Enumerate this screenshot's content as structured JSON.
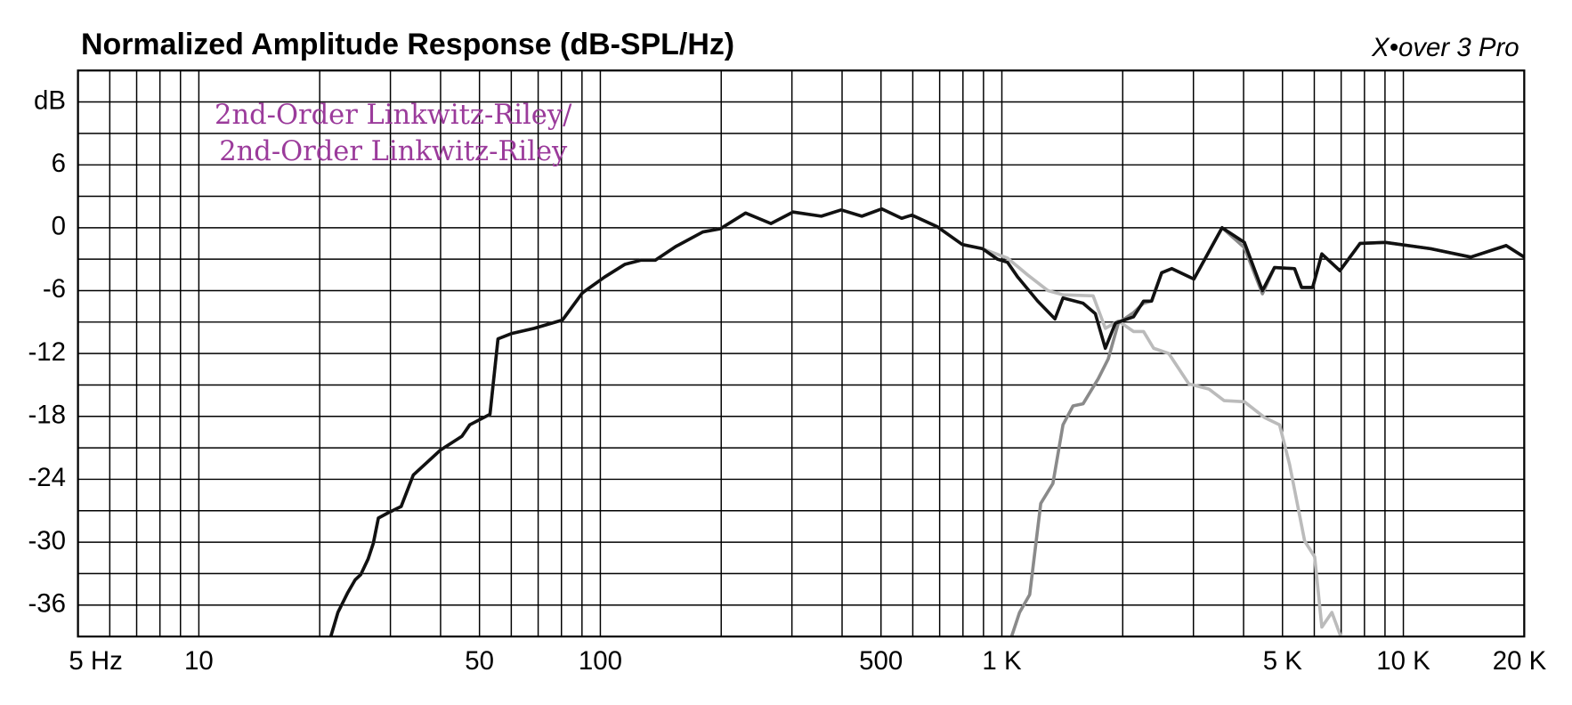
{
  "chart_data": {
    "type": "line",
    "title": "Normalized Amplitude Response (dB-SPL/Hz)",
    "brand": "X•over 3 Pro",
    "annotation": [
      "2nd-Order Linkwitz-Riley/",
      "2nd-Order Linkwitz-Riley"
    ],
    "xscale": "log",
    "xlim": [
      5,
      20000
    ],
    "ylim": [
      -39,
      15
    ],
    "xticks": [
      {
        "value": 5,
        "label": "5 Hz"
      },
      10,
      50,
      100,
      500,
      {
        "value": 1000,
        "label": "1 K"
      },
      {
        "value": 5000,
        "label": "5 K"
      },
      {
        "value": 10000,
        "label": "10 K"
      },
      {
        "value": 20000,
        "label": "20 K"
      }
    ],
    "minor_xticks": [
      6,
      7,
      8,
      9,
      20,
      30,
      40,
      60,
      70,
      80,
      90,
      200,
      300,
      400,
      600,
      700,
      800,
      900,
      2000,
      3000,
      4000,
      6000,
      7000,
      8000,
      9000
    ],
    "yticks": [
      {
        "value": 12,
        "label": "dB"
      },
      6,
      0,
      -6,
      -12,
      -18,
      -24,
      -30,
      -36
    ],
    "minor_yticks": [
      15,
      9,
      3,
      -3,
      -9,
      -15,
      -21,
      -27,
      -33,
      -39
    ],
    "grid": true,
    "series": [
      {
        "color": "#bbbbbb",
        "x": [
          21.2,
          22.2,
          23.5,
          24.5,
          25.3,
          26.4,
          27.2,
          28.0,
          29.6,
          31.9,
          34.2,
          40.0,
          45.2,
          47.3,
          53.1,
          55.6,
          60.0,
          68.4,
          80.5,
          90.3,
          102.5,
          115,
          126,
          137,
          154,
          180,
          199,
          230,
          266,
          302,
          355,
          398,
          448,
          502,
          563,
          597,
          690,
          797,
          895,
          1033,
          1159,
          1302,
          1420,
          1688,
          1810,
          1950,
          2128,
          2254,
          2388,
          2604,
          2922,
          3281,
          3577,
          4018,
          4508,
          4916,
          5208,
          5678,
          6013,
          6266,
          6637,
          7031
        ],
        "values": [
          -39.3,
          -36.7,
          -34.8,
          -33.6,
          -33.1,
          -31.6,
          -30.1,
          -27.7,
          -27.2,
          -26.6,
          -23.6,
          -21.2,
          -19.9,
          -18.8,
          -17.8,
          -10.6,
          -10.1,
          -9.6,
          -8.8,
          -6.2,
          -4.7,
          -3.5,
          -3.1,
          -3.1,
          -1.8,
          -0.4,
          -0.1,
          1.4,
          0.4,
          1.5,
          1.1,
          1.7,
          1.1,
          1.8,
          0.9,
          1.2,
          0.1,
          -1.6,
          -2.0,
          -2.9,
          -4.5,
          -6.0,
          -6.4,
          -6.5,
          -9.6,
          -8.9,
          -9.9,
          -9.9,
          -11.5,
          -12.0,
          -14.9,
          -15.4,
          -16.5,
          -16.6,
          -18.1,
          -18.8,
          -22.6,
          -29.9,
          -31.4,
          -38.1,
          -36.7,
          -39.3
        ]
      },
      {
        "color": "#8a8a8a",
        "x": [
          1051,
          1107,
          1173,
          1250,
          1340,
          1420,
          1504,
          1593,
          1738,
          1841,
          1950,
          2128,
          2254,
          2360,
          2500,
          2650,
          3008,
          3536,
          4018,
          4456,
          4775,
          5358,
          5580,
          5943,
          6266,
          6950,
          7800,
          9016,
          11690,
          14720,
          18030,
          20000
        ],
        "values": [
          -39.3,
          -36.7,
          -35.0,
          -26.3,
          -24.4,
          -18.8,
          -17.0,
          -16.8,
          -14.4,
          -12.5,
          -9.1,
          -8.1,
          -7.2,
          -7.0,
          -4.3,
          -3.9,
          -4.9,
          0,
          -1.9,
          -6.3,
          -3.8,
          -3.9,
          -5.7,
          -5.7,
          -2.5,
          -4.1,
          -1.5,
          -1.4,
          -2.0,
          -2.8,
          -1.7,
          -2.8
        ]
      },
      {
        "color": "#111111",
        "x": [
          21.2,
          22.2,
          23.5,
          24.5,
          25.3,
          26.4,
          27.2,
          28.0,
          29.6,
          31.9,
          34.2,
          40.0,
          45.2,
          47.3,
          53.1,
          55.6,
          60.0,
          68.4,
          80.5,
          90.3,
          102.5,
          115,
          126,
          137,
          154,
          180,
          199,
          230,
          266,
          302,
          355,
          398,
          448,
          502,
          563,
          597,
          690,
          797,
          895,
          975,
          1033,
          1095,
          1228,
          1356,
          1420,
          1593,
          1709,
          1810,
          1918,
          2128,
          2254,
          2360,
          2500,
          2650,
          3008,
          3536,
          4018,
          4456,
          4775,
          5358,
          5580,
          5943,
          6266,
          6950,
          7800,
          9016,
          11690,
          14720,
          18030,
          20000
        ],
        "values": [
          -39.3,
          -36.7,
          -34.8,
          -33.6,
          -33.1,
          -31.6,
          -30.1,
          -27.7,
          -27.2,
          -26.6,
          -23.6,
          -21.2,
          -19.9,
          -18.8,
          -17.8,
          -10.6,
          -10.1,
          -9.6,
          -8.8,
          -6.2,
          -4.7,
          -3.5,
          -3.1,
          -3.1,
          -1.8,
          -0.4,
          -0.1,
          1.4,
          0.4,
          1.5,
          1.1,
          1.7,
          1.1,
          1.8,
          0.9,
          1.2,
          0.1,
          -1.6,
          -2.0,
          -3.0,
          -3.3,
          -4.7,
          -7.0,
          -8.7,
          -6.7,
          -7.2,
          -8.2,
          -11.5,
          -9.1,
          -8.5,
          -7.0,
          -7.0,
          -4.3,
          -3.9,
          -4.9,
          0,
          -1.4,
          -6.0,
          -3.8,
          -3.9,
          -5.7,
          -5.7,
          -2.5,
          -4.1,
          -1.5,
          -1.4,
          -2.0,
          -2.8,
          -1.7,
          -2.8
        ]
      }
    ]
  }
}
